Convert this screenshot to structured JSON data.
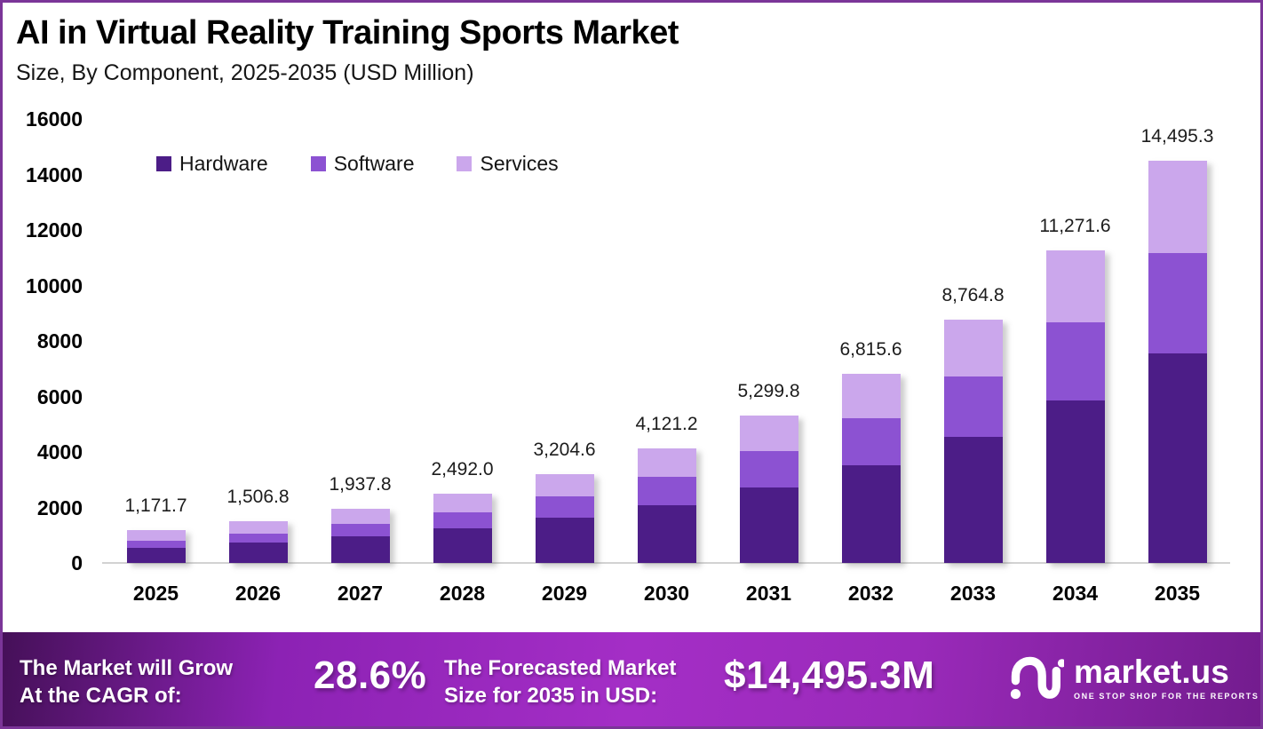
{
  "header": {
    "title": "AI in Virtual Reality Training Sports Market",
    "subtitle": "Size, By Component, 2025-2035 (USD Million)"
  },
  "chart_data": {
    "type": "bar",
    "stacked": true,
    "title": "AI in Virtual Reality Training Sports Market",
    "xlabel": "",
    "ylabel": "USD Million",
    "ylim": [
      0,
      16000
    ],
    "yticks": [
      0,
      2000,
      4000,
      6000,
      8000,
      10000,
      12000,
      14000,
      16000
    ],
    "grid": false,
    "legend_position": "top-left",
    "categories": [
      "2025",
      "2026",
      "2027",
      "2028",
      "2029",
      "2030",
      "2031",
      "2032",
      "2033",
      "2034",
      "2035"
    ],
    "series": [
      {
        "name": "Hardware",
        "color": "#4c1d87",
        "values": [
          550.7,
          723.3,
          949.5,
          1246.0,
          1618.3,
          2093.6,
          2713.5,
          3516.8,
          4557.7,
          5861.2,
          7552.1
        ]
      },
      {
        "name": "Software",
        "color": "#8c52d2",
        "values": [
          257.8,
          339.0,
          445.7,
          585.6,
          769.1,
          1009.7,
          1303.8,
          1690.3,
          2173.7,
          2817.9,
          3623.8
        ]
      },
      {
        "name": "Services",
        "color": "#cba7ec",
        "values": [
          363.2,
          444.5,
          542.6,
          660.4,
          817.2,
          1017.9,
          1282.5,
          1608.5,
          2033.4,
          2592.5,
          3319.4
        ]
      }
    ],
    "totals": [
      1171.7,
      1506.8,
      1937.8,
      2492.0,
      3204.6,
      4121.2,
      5299.8,
      6815.6,
      8764.8,
      11271.6,
      14495.3
    ],
    "total_labels": [
      "1,171.7",
      "1,506.8",
      "1,937.8",
      "2,492.0",
      "3,204.6",
      "4,121.2",
      "5,299.8",
      "6,815.6",
      "8,764.8",
      "11,271.6",
      "14,495.3"
    ]
  },
  "footer": {
    "grow_line1": "The Market will Grow",
    "grow_line2": "At the CAGR of:",
    "cagr_value": "28.6%",
    "forecast_line1": "The Forecasted Market",
    "forecast_line2": "Size for 2035 in USD:",
    "forecast_value": "$14,495.3M",
    "brand": {
      "name": "market.us",
      "tagline": "ONE STOP SHOP FOR THE REPORTS"
    }
  },
  "colors": {
    "hardware": "#4c1d87",
    "software": "#8c52d2",
    "services": "#cba7ec",
    "border": "#7b3598",
    "banner_gradient": [
      "#451058",
      "#a42ec6",
      "#731c8e"
    ]
  }
}
